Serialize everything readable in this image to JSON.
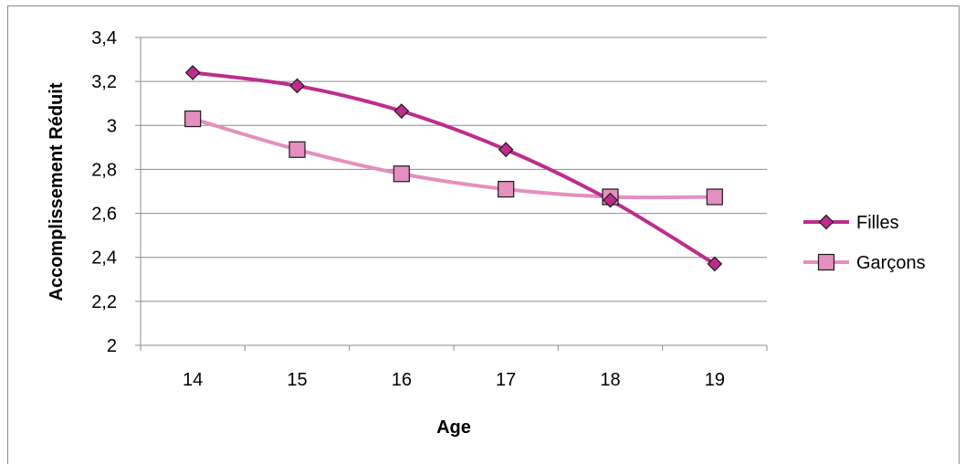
{
  "chart_data": {
    "type": "line",
    "title": "",
    "xlabel": "Age",
    "ylabel": "Accomplissement Réduit",
    "categories": [
      "14",
      "15",
      "16",
      "17",
      "18",
      "19"
    ],
    "ylim": [
      2,
      3.4
    ],
    "yticks": [
      "2",
      "2,2",
      "2,4",
      "2,6",
      "2,8",
      "3",
      "3,2",
      "3,4"
    ],
    "grid": "horizontal",
    "legend_position": "right",
    "series": [
      {
        "name": "Filles",
        "values": [
          3.24,
          3.18,
          3.065,
          2.89,
          2.66,
          2.37
        ],
        "color": "#be2d8c",
        "marker": "diamond"
      },
      {
        "name": "Garçons",
        "values": [
          3.03,
          2.89,
          2.78,
          2.71,
          2.675,
          2.675
        ],
        "color": "#e48fc0",
        "marker": "square"
      }
    ]
  }
}
